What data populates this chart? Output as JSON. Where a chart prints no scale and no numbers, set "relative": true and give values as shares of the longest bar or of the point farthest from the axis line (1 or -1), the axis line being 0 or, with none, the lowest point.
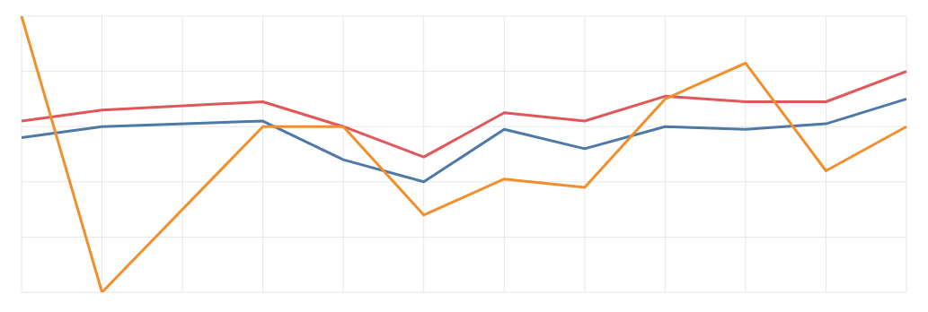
{
  "chart_data": {
    "type": "line",
    "relative": true,
    "grid": true,
    "tick_labels": false,
    "legend": false,
    "marker": "none",
    "line_style": "solid",
    "categories": [
      null,
      null,
      null,
      null,
      null,
      null,
      null,
      null,
      null,
      null,
      null,
      null
    ],
    "series": [
      {
        "color": "#e15759",
        "values": [
          0.62,
          0.66,
          null,
          0.69,
          0.6,
          0.49,
          0.65,
          0.62,
          0.71,
          0.69,
          0.69,
          0.8
        ]
      },
      {
        "color": "#4e79a7",
        "values": [
          0.56,
          0.6,
          null,
          0.62,
          0.48,
          0.4,
          0.59,
          0.52,
          0.6,
          0.59,
          0.61,
          0.7
        ]
      },
      {
        "color": "#f28e2b",
        "values": [
          1,
          0,
          null,
          0.6,
          0.6,
          0.28,
          0.41,
          0.38,
          0.7,
          0.83,
          0.44,
          0.6
        ]
      }
    ]
  }
}
